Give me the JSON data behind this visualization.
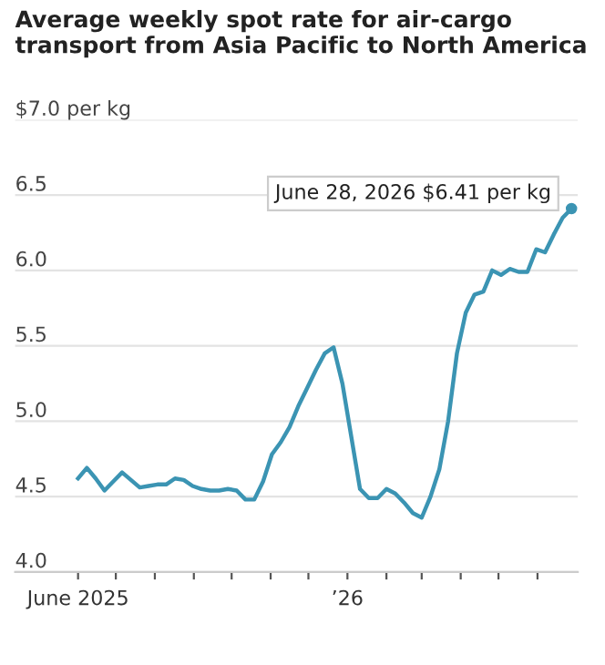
{
  "chart_data": {
    "type": "line",
    "title": "Average weekly spot rate for air-cargo transport from Asia Pacific to North America",
    "x": [
      "2025-06-01",
      "2025-06-08",
      "2025-06-15",
      "2025-06-22",
      "2025-06-29",
      "2025-07-06",
      "2025-07-13",
      "2025-07-20",
      "2025-07-27",
      "2025-08-03",
      "2025-08-10",
      "2025-08-17",
      "2025-08-24",
      "2025-08-31",
      "2025-09-07",
      "2025-09-14",
      "2025-09-21",
      "2025-09-28",
      "2025-10-05",
      "2025-10-12",
      "2025-10-19",
      "2025-10-26",
      "2025-11-02",
      "2025-11-09",
      "2025-11-16",
      "2025-11-23",
      "2025-11-30",
      "2025-12-07",
      "2025-12-14",
      "2025-12-21",
      "2025-12-28",
      "2026-01-04",
      "2026-01-11",
      "2026-01-18",
      "2026-01-25",
      "2026-02-01",
      "2026-02-08",
      "2026-02-15",
      "2026-02-22",
      "2026-03-01",
      "2026-03-08",
      "2026-03-15",
      "2026-03-22",
      "2026-03-29",
      "2026-04-05",
      "2026-04-12",
      "2026-04-19",
      "2026-04-26",
      "2026-05-03",
      "2026-05-10",
      "2026-05-17",
      "2026-05-24",
      "2026-05-31",
      "2026-06-07",
      "2026-06-14",
      "2026-06-21",
      "2026-06-28"
    ],
    "series": [
      {
        "color": "#3b94b3",
        "values": [
          4.62,
          4.69,
          4.62,
          4.54,
          4.6,
          4.66,
          4.61,
          4.56,
          4.57,
          4.58,
          4.58,
          4.62,
          4.61,
          4.57,
          4.55,
          4.54,
          4.54,
          4.55,
          4.54,
          4.48,
          4.48,
          4.6,
          4.78,
          4.86,
          4.96,
          5.1,
          5.22,
          5.34,
          5.45,
          5.49,
          5.25,
          4.9,
          4.55,
          4.49,
          4.49,
          4.55,
          4.52,
          4.46,
          4.39,
          4.36,
          4.5,
          4.68,
          5.0,
          5.45,
          5.72,
          5.84,
          5.86,
          6.0,
          5.97,
          6.01,
          5.99,
          5.99,
          6.14,
          6.12,
          6.24,
          6.35,
          6.41
        ]
      }
    ],
    "xlim": [
      "2025-04-12",
      "2026-07-03"
    ],
    "xticks": [
      {
        "value": "2025-06-01",
        "label": "June 2025"
      },
      {
        "value": "2025-07-01",
        "label": null
      },
      {
        "value": "2025-08-01",
        "label": null
      },
      {
        "value": "2025-09-01",
        "label": null
      },
      {
        "value": "2025-10-01",
        "label": null
      },
      {
        "value": "2025-11-01",
        "label": null
      },
      {
        "value": "2025-12-01",
        "label": null
      },
      {
        "value": "2026-01-01",
        "label": "’26"
      },
      {
        "value": "2026-02-01",
        "label": null
      },
      {
        "value": "2026-03-01",
        "label": null
      },
      {
        "value": "2026-04-01",
        "label": null
      },
      {
        "value": "2026-05-01",
        "label": null
      },
      {
        "value": "2026-06-01",
        "label": null
      }
    ],
    "ylim": [
      4.0,
      7.0
    ],
    "yticks": [
      {
        "value": 4.0,
        "label": "4.0"
      },
      {
        "value": 4.5,
        "label": "4.5"
      },
      {
        "value": 5.0,
        "label": "5.0"
      },
      {
        "value": 5.5,
        "label": "5.5"
      },
      {
        "value": 6.0,
        "label": "6.0"
      },
      {
        "value": 6.5,
        "label": "6.5"
      },
      {
        "value": 7.0,
        "label": "$7.0 per kg"
      }
    ],
    "grid": "y",
    "legend": false,
    "marker": "none",
    "line_style": "solid",
    "annotations": [
      {
        "text": "June 28, 2026 $6.41 per kg",
        "x": "2026-06-28",
        "y": 6.41
      }
    ]
  }
}
